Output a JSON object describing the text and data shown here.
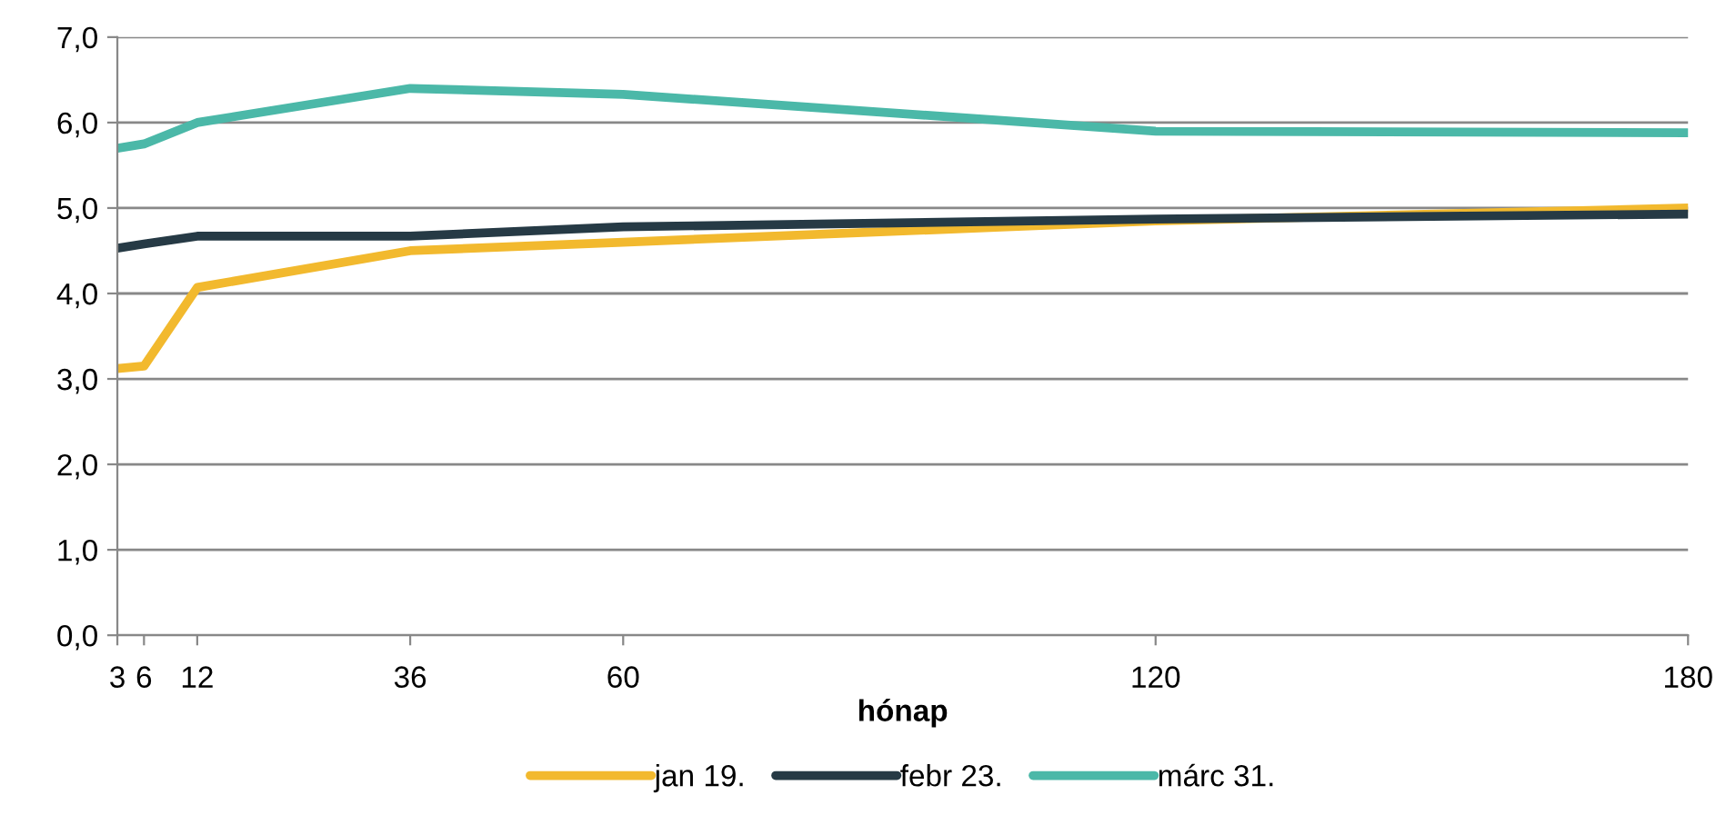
{
  "chart_data": {
    "type": "line",
    "xlabel": "hónap",
    "x": [
      3,
      6,
      12,
      36,
      60,
      120,
      180
    ],
    "series": [
      {
        "name": "jan 19.",
        "color": "#f2b92e",
        "values": [
          3.12,
          3.15,
          4.07,
          4.5,
          4.6,
          4.85,
          5.0
        ]
      },
      {
        "name": "febr 23.",
        "color": "#263a45",
        "values": [
          4.53,
          4.58,
          4.67,
          4.67,
          4.78,
          4.87,
          4.93
        ]
      },
      {
        "name": "márc 31.",
        "color": "#4bb8a8",
        "values": [
          5.7,
          5.75,
          6.0,
          6.4,
          6.33,
          5.9,
          5.88
        ]
      }
    ],
    "xlim": [
      3,
      180
    ],
    "xticks": [
      3,
      6,
      12,
      36,
      60,
      120,
      180
    ],
    "ylim": [
      0,
      7
    ],
    "yticks": [
      {
        "value": 0,
        "label": "0,0"
      },
      {
        "value": 1,
        "label": "1,0"
      },
      {
        "value": 2,
        "label": "2,0"
      },
      {
        "value": 3,
        "label": "3,0"
      },
      {
        "value": 4,
        "label": "4,0"
      },
      {
        "value": 5,
        "label": "5,0"
      },
      {
        "value": 6,
        "label": "6,0"
      },
      {
        "value": 7,
        "label": "7,0"
      }
    ],
    "grid": "y",
    "legend": "bottom",
    "line_style": "solid",
    "marker": "none"
  }
}
